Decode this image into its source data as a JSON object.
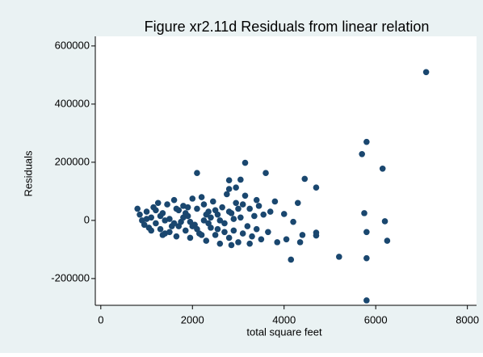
{
  "chart_data": {
    "type": "scatter",
    "title": "Figure xr2.11d Residuals from linear relation",
    "x_label": "total square feet",
    "y_label": "Residuals",
    "color": "#1a476f",
    "xlim": [
      -120,
      8200
    ],
    "ylim": [
      -292000,
      633000
    ],
    "xticks": [
      0,
      2000,
      4000,
      6000,
      8000
    ],
    "yticks": [
      -200000,
      0,
      200000,
      400000,
      600000
    ],
    "x": [
      7100,
      5800,
      5700,
      6150,
      3150,
      2100,
      3600,
      4450,
      4700,
      5750,
      6200,
      5800,
      6250,
      5200,
      5800,
      4150,
      5800,
      4700,
      4700,
      4350,
      4050,
      3850,
      2800,
      3050,
      2950,
      2800,
      3800,
      4000,
      4200,
      4300,
      4400,
      800,
      850,
      900,
      950,
      1000,
      1050,
      1100,
      1150,
      1200,
      1250,
      1300,
      1350,
      1400,
      1450,
      1500,
      1550,
      1600,
      1650,
      1700,
      1750,
      1800,
      1850,
      1900,
      1950,
      2000,
      2050,
      2100,
      2150,
      2200,
      2250,
      2300,
      2350,
      2400,
      2450,
      2500,
      2550,
      2600,
      2650,
      2700,
      2750,
      2800,
      2850,
      2900,
      2950,
      3000,
      3050,
      3100,
      3150,
      3200,
      3250,
      3300,
      3350,
      3400,
      3450,
      3500,
      3550,
      3650,
      3700,
      1300,
      1500,
      1700,
      1900,
      2100,
      2300,
      2500,
      2700,
      2900,
      3100,
      1200,
      1400,
      1600,
      1800,
      2000,
      2200,
      2400,
      2600,
      2800,
      3000,
      1100,
      1350,
      1650,
      1950,
      2250,
      2550,
      2850,
      3250,
      3400,
      1000,
      1850,
      2350
    ],
    "values": [
      510000,
      270000,
      228000,
      178000,
      198000,
      163000,
      163000,
      143000,
      113000,
      25000,
      -3000,
      -40000,
      -70000,
      -125000,
      -130000,
      -135000,
      -275000,
      -42000,
      -52000,
      -75000,
      -65000,
      -75000,
      138000,
      140000,
      113000,
      108000,
      65000,
      22000,
      -5000,
      60000,
      -50000,
      40000,
      20000,
      0,
      -15000,
      30000,
      -25000,
      10000,
      45000,
      -10000,
      60000,
      -30000,
      25000,
      -45000,
      55000,
      5000,
      -20000,
      70000,
      -55000,
      35000,
      -5000,
      50000,
      -35000,
      15000,
      -60000,
      75000,
      -15000,
      40000,
      -45000,
      80000,
      0,
      -70000,
      30000,
      -25000,
      65000,
      -50000,
      20000,
      -80000,
      45000,
      -10000,
      90000,
      -60000,
      25000,
      -35000,
      60000,
      -75000,
      10000,
      -45000,
      85000,
      -20000,
      40000,
      -55000,
      15000,
      -30000,
      50000,
      -65000,
      20000,
      -40000,
      30000,
      15000,
      -40000,
      -20000,
      45000,
      -30000,
      20000,
      35000,
      -40000,
      5000,
      55000,
      35000,
      0,
      -10000,
      10000,
      -20000,
      -50000,
      10000,
      0,
      30000,
      40000,
      -35000,
      -50000,
      40000,
      -5000,
      55000,
      -30000,
      -85000,
      -80000,
      70000,
      5000,
      25000,
      -10000
    ]
  }
}
